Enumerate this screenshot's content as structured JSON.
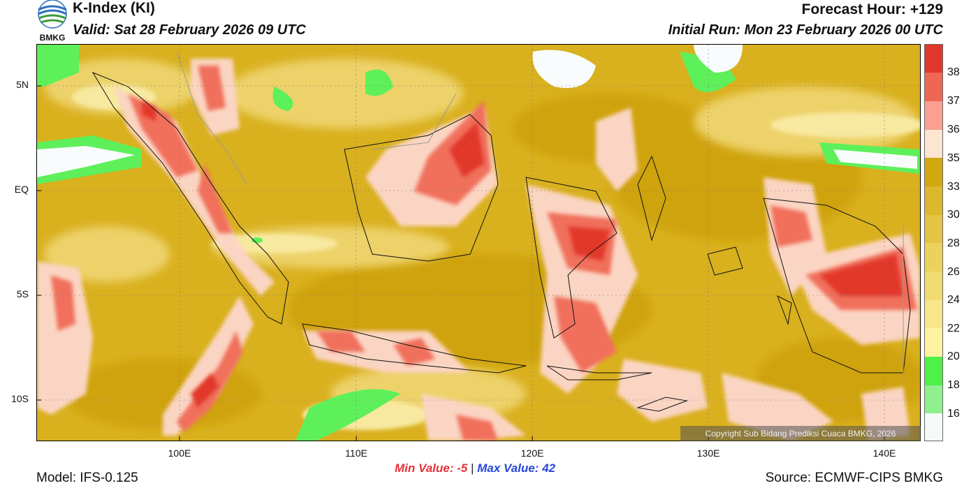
{
  "header": {
    "title": "K-Index (KI)",
    "valid": "Valid: Sat 28 February 2026 09 UTC",
    "forecast_hour": "Forecast Hour: +129",
    "initial_run": "Initial Run: Mon 23 February 2026 00 UTC",
    "logo_text": "BMKG"
  },
  "map": {
    "lat_ticks": [
      "5N",
      "EQ",
      "5S",
      "10S"
    ],
    "lon_ticks": [
      "100E",
      "110E",
      "120E",
      "130E",
      "140E"
    ],
    "copyright": "Copyright Sub Bidang Prediksi Cuaca BMKG, 2026"
  },
  "colorbar": {
    "labels": [
      "38",
      "37",
      "36",
      "35",
      "33",
      "30",
      "28",
      "26",
      "24",
      "22",
      "20",
      "18",
      "16"
    ],
    "colors": [
      "#f4fafa",
      "#90f08e",
      "#4ef04a",
      "#fcf2a0",
      "#f8e68a",
      "#f1dc70",
      "#ecd25a",
      "#e4c444",
      "#dcb82c",
      "#d0a810",
      "#fce6d2",
      "#f9a090",
      "#f06654",
      "#e2372c"
    ]
  },
  "stats": {
    "min_label": "Min Value:",
    "min_value": "-5",
    "separator": "|",
    "max_label": "Max Value:",
    "max_value": "42"
  },
  "footer": {
    "model": "Model: IFS-0.125",
    "source": "Source: ECMWF-CIPS BMKG"
  }
}
